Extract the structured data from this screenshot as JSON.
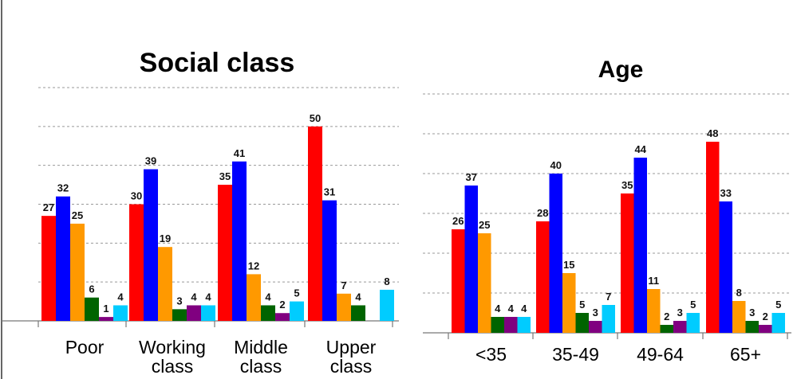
{
  "chart_data": [
    {
      "type": "bar",
      "title": "Social class",
      "categories": [
        "Poor",
        "Working class",
        "Middle class",
        "Upper class"
      ],
      "category_lines": [
        [
          "Poor"
        ],
        [
          "Working",
          "class"
        ],
        [
          "Middle",
          "class"
        ],
        [
          "Upper",
          "class"
        ]
      ],
      "ylim": [
        0,
        60
      ],
      "grid": true,
      "series": [
        {
          "color": "#ff0000",
          "values": [
            27,
            30,
            35,
            50
          ]
        },
        {
          "color": "#0000ff",
          "values": [
            32,
            39,
            41,
            31
          ]
        },
        {
          "color": "#ff9900",
          "values": [
            25,
            19,
            12,
            7
          ]
        },
        {
          "color": "#006400",
          "values": [
            6,
            3,
            4,
            4
          ]
        },
        {
          "color": "#800080",
          "values": [
            1,
            4,
            2,
            null
          ]
        },
        {
          "color": "#00ccff",
          "values": [
            4,
            4,
            5,
            8
          ]
        }
      ]
    },
    {
      "type": "bar",
      "title": "Age",
      "categories": [
        "<35",
        "35-49",
        "49-64",
        "65+"
      ],
      "category_lines": [
        [
          "<35"
        ],
        [
          "35-49"
        ],
        [
          "49-64"
        ],
        [
          "65+"
        ]
      ],
      "ylim": [
        0,
        60
      ],
      "grid": true,
      "series": [
        {
          "color": "#ff0000",
          "values": [
            26,
            28,
            35,
            48
          ]
        },
        {
          "color": "#0000ff",
          "values": [
            37,
            40,
            44,
            33
          ]
        },
        {
          "color": "#ff9900",
          "values": [
            25,
            15,
            11,
            8
          ]
        },
        {
          "color": "#006400",
          "values": [
            4,
            5,
            2,
            3
          ]
        },
        {
          "color": "#800080",
          "values": [
            4,
            3,
            3,
            2
          ]
        },
        {
          "color": "#00ccff",
          "values": [
            4,
            7,
            5,
            5
          ]
        }
      ]
    }
  ]
}
